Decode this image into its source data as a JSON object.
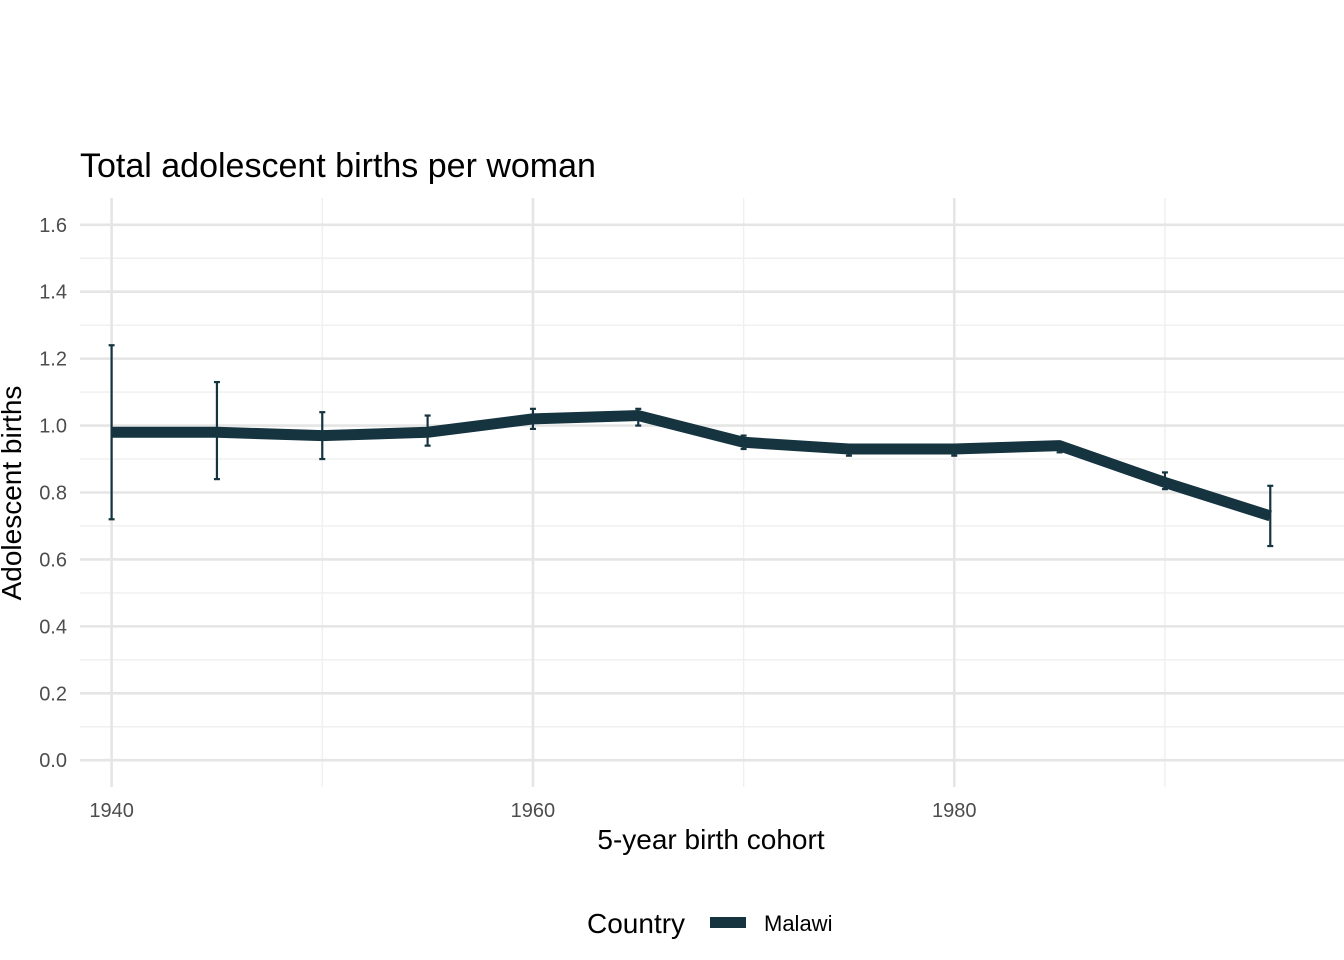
{
  "chart_data": {
    "type": "line",
    "title": "Total adolescent births per woman",
    "xlabel": "5-year birth cohort",
    "ylabel": "Adolescent births",
    "xlim": [
      1938.5,
      1998.5
    ],
    "ylim": [
      -0.08,
      1.68
    ],
    "x_ticks": [
      1940,
      1960,
      1980
    ],
    "x_tick_labels": [
      "1940",
      "1960",
      "1980"
    ],
    "x_minor_ticks": [
      1950,
      1970,
      1990
    ],
    "y_ticks": [
      0.0,
      0.2,
      0.4,
      0.6,
      0.8,
      1.0,
      1.2,
      1.4,
      1.6
    ],
    "y_tick_labels": [
      "0.0",
      "0.2",
      "0.4",
      "0.6",
      "0.8",
      "1.0",
      "1.2",
      "1.4",
      "1.6"
    ],
    "y_minor_ticks": [
      0.1,
      0.3,
      0.5,
      0.7,
      0.9,
      1.1,
      1.3,
      1.5
    ],
    "grid": true,
    "legend": {
      "title": "Country",
      "position": "bottom"
    },
    "series": [
      {
        "name": "Malawi",
        "color": "#15343f",
        "x": [
          1940,
          1945,
          1950,
          1955,
          1960,
          1965,
          1970,
          1975,
          1980,
          1985,
          1990,
          1995
        ],
        "values": [
          0.98,
          0.98,
          0.97,
          0.98,
          1.02,
          1.03,
          0.95,
          0.93,
          0.93,
          0.94,
          0.83,
          0.73
        ],
        "lower": [
          0.72,
          0.84,
          0.9,
          0.94,
          0.99,
          1.0,
          0.93,
          0.91,
          0.91,
          0.92,
          0.81,
          0.64
        ],
        "upper": [
          1.24,
          1.13,
          1.04,
          1.03,
          1.05,
          1.05,
          0.97,
          0.94,
          0.94,
          0.95,
          0.86,
          0.82
        ]
      }
    ]
  }
}
